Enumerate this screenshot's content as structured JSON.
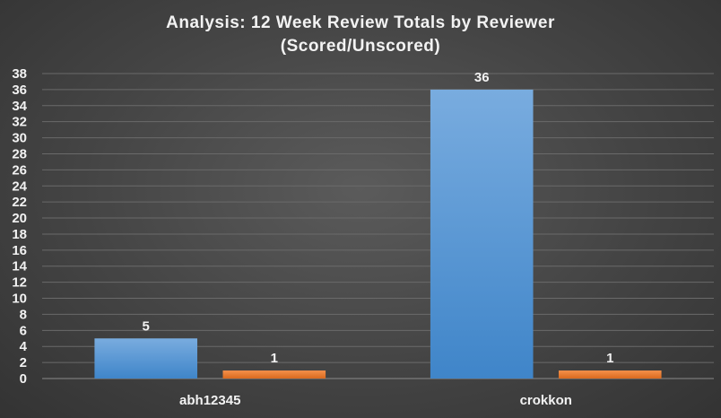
{
  "chart_data": {
    "type": "bar",
    "title_lines": [
      "Analysis:  12 Week Review Totals  by Reviewer",
      "(Scored/Unscored)"
    ],
    "categories": [
      "abh12345",
      "crokkon"
    ],
    "series": [
      {
        "values": [
          5,
          36
        ],
        "color": "#5b9bd5"
      },
      {
        "values": [
          1,
          1
        ],
        "color": "#ed7d31"
      }
    ],
    "ylim": [
      0,
      38
    ],
    "yticks": [
      0,
      2,
      4,
      6,
      8,
      10,
      12,
      14,
      16,
      18,
      20,
      22,
      24,
      26,
      28,
      30,
      32,
      34,
      36,
      38
    ],
    "grid": true,
    "legend": "none",
    "background": "#444444"
  }
}
